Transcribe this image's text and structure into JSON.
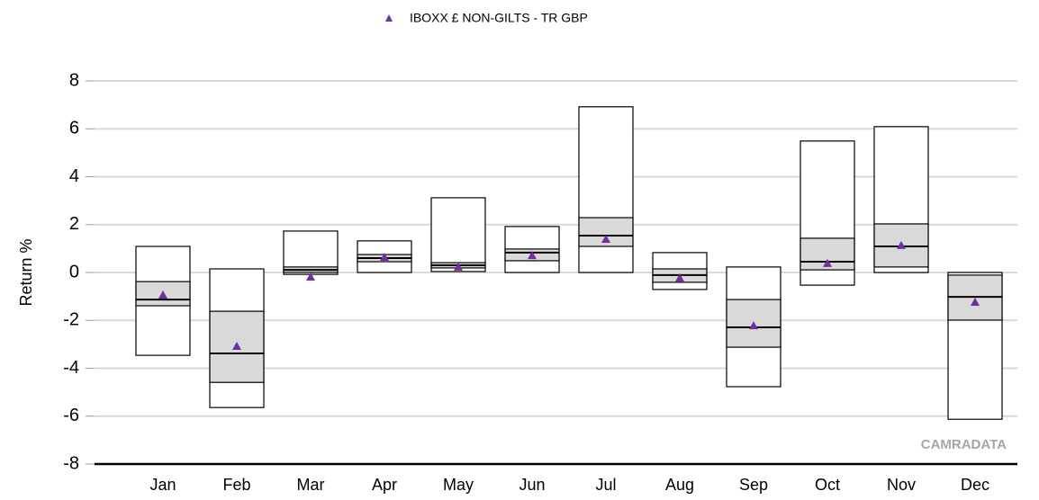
{
  "chart_data": {
    "type": "box",
    "legend": "IBOXX £ NON-GILTS - TR GBP",
    "ylabel": "Return %",
    "watermark": "CAMRADATA",
    "categories": [
      "Jan",
      "Feb",
      "Mar",
      "Apr",
      "May",
      "Jun",
      "Jul",
      "Aug",
      "Sep",
      "Oct",
      "Nov",
      "Dec"
    ],
    "boxes": {
      "max": [
        1.09,
        0.15,
        1.73,
        1.32,
        3.12,
        1.92,
        6.92,
        0.83,
        0.23,
        5.49,
        6.09,
        0
      ],
      "q3": [
        -0.38,
        -1.62,
        0.23,
        0.75,
        0.41,
        0.98,
        2.29,
        0.15,
        -1.13,
        1.43,
        2.03,
        -0.11
      ],
      "median": [
        -1.13,
        -3.38,
        0.11,
        0.6,
        0.3,
        0.83,
        1.54,
        -0.11,
        -2.29,
        0.45,
        1.09,
        -1.02
      ],
      "q1": [
        -1.39,
        -4.59,
        0,
        0.45,
        0.19,
        0.49,
        1.09,
        -0.41,
        -3.12,
        0.11,
        0.23,
        -1.99
      ],
      "min": [
        -3.46,
        -5.64,
        -0.08,
        0,
        0.04,
        0,
        0,
        -0.71,
        -4.77,
        -0.53,
        0,
        -6.13
      ],
      "box_color": "#d9d9d9"
    },
    "series": [
      {
        "name": "IBOXX £ NON-GILTS - TR GBP",
        "color": "#7030a0",
        "values": [
          -0.94,
          -3.08,
          -0.19,
          0.64,
          0.23,
          0.71,
          1.39,
          -0.23,
          -2.22,
          0.38,
          1.13,
          -1.24
        ]
      }
    ],
    "ylim": [
      -8,
      8
    ],
    "yticks": [
      -8,
      -6,
      -4,
      -2,
      0,
      2,
      4,
      6,
      8
    ],
    "grid": true
  }
}
